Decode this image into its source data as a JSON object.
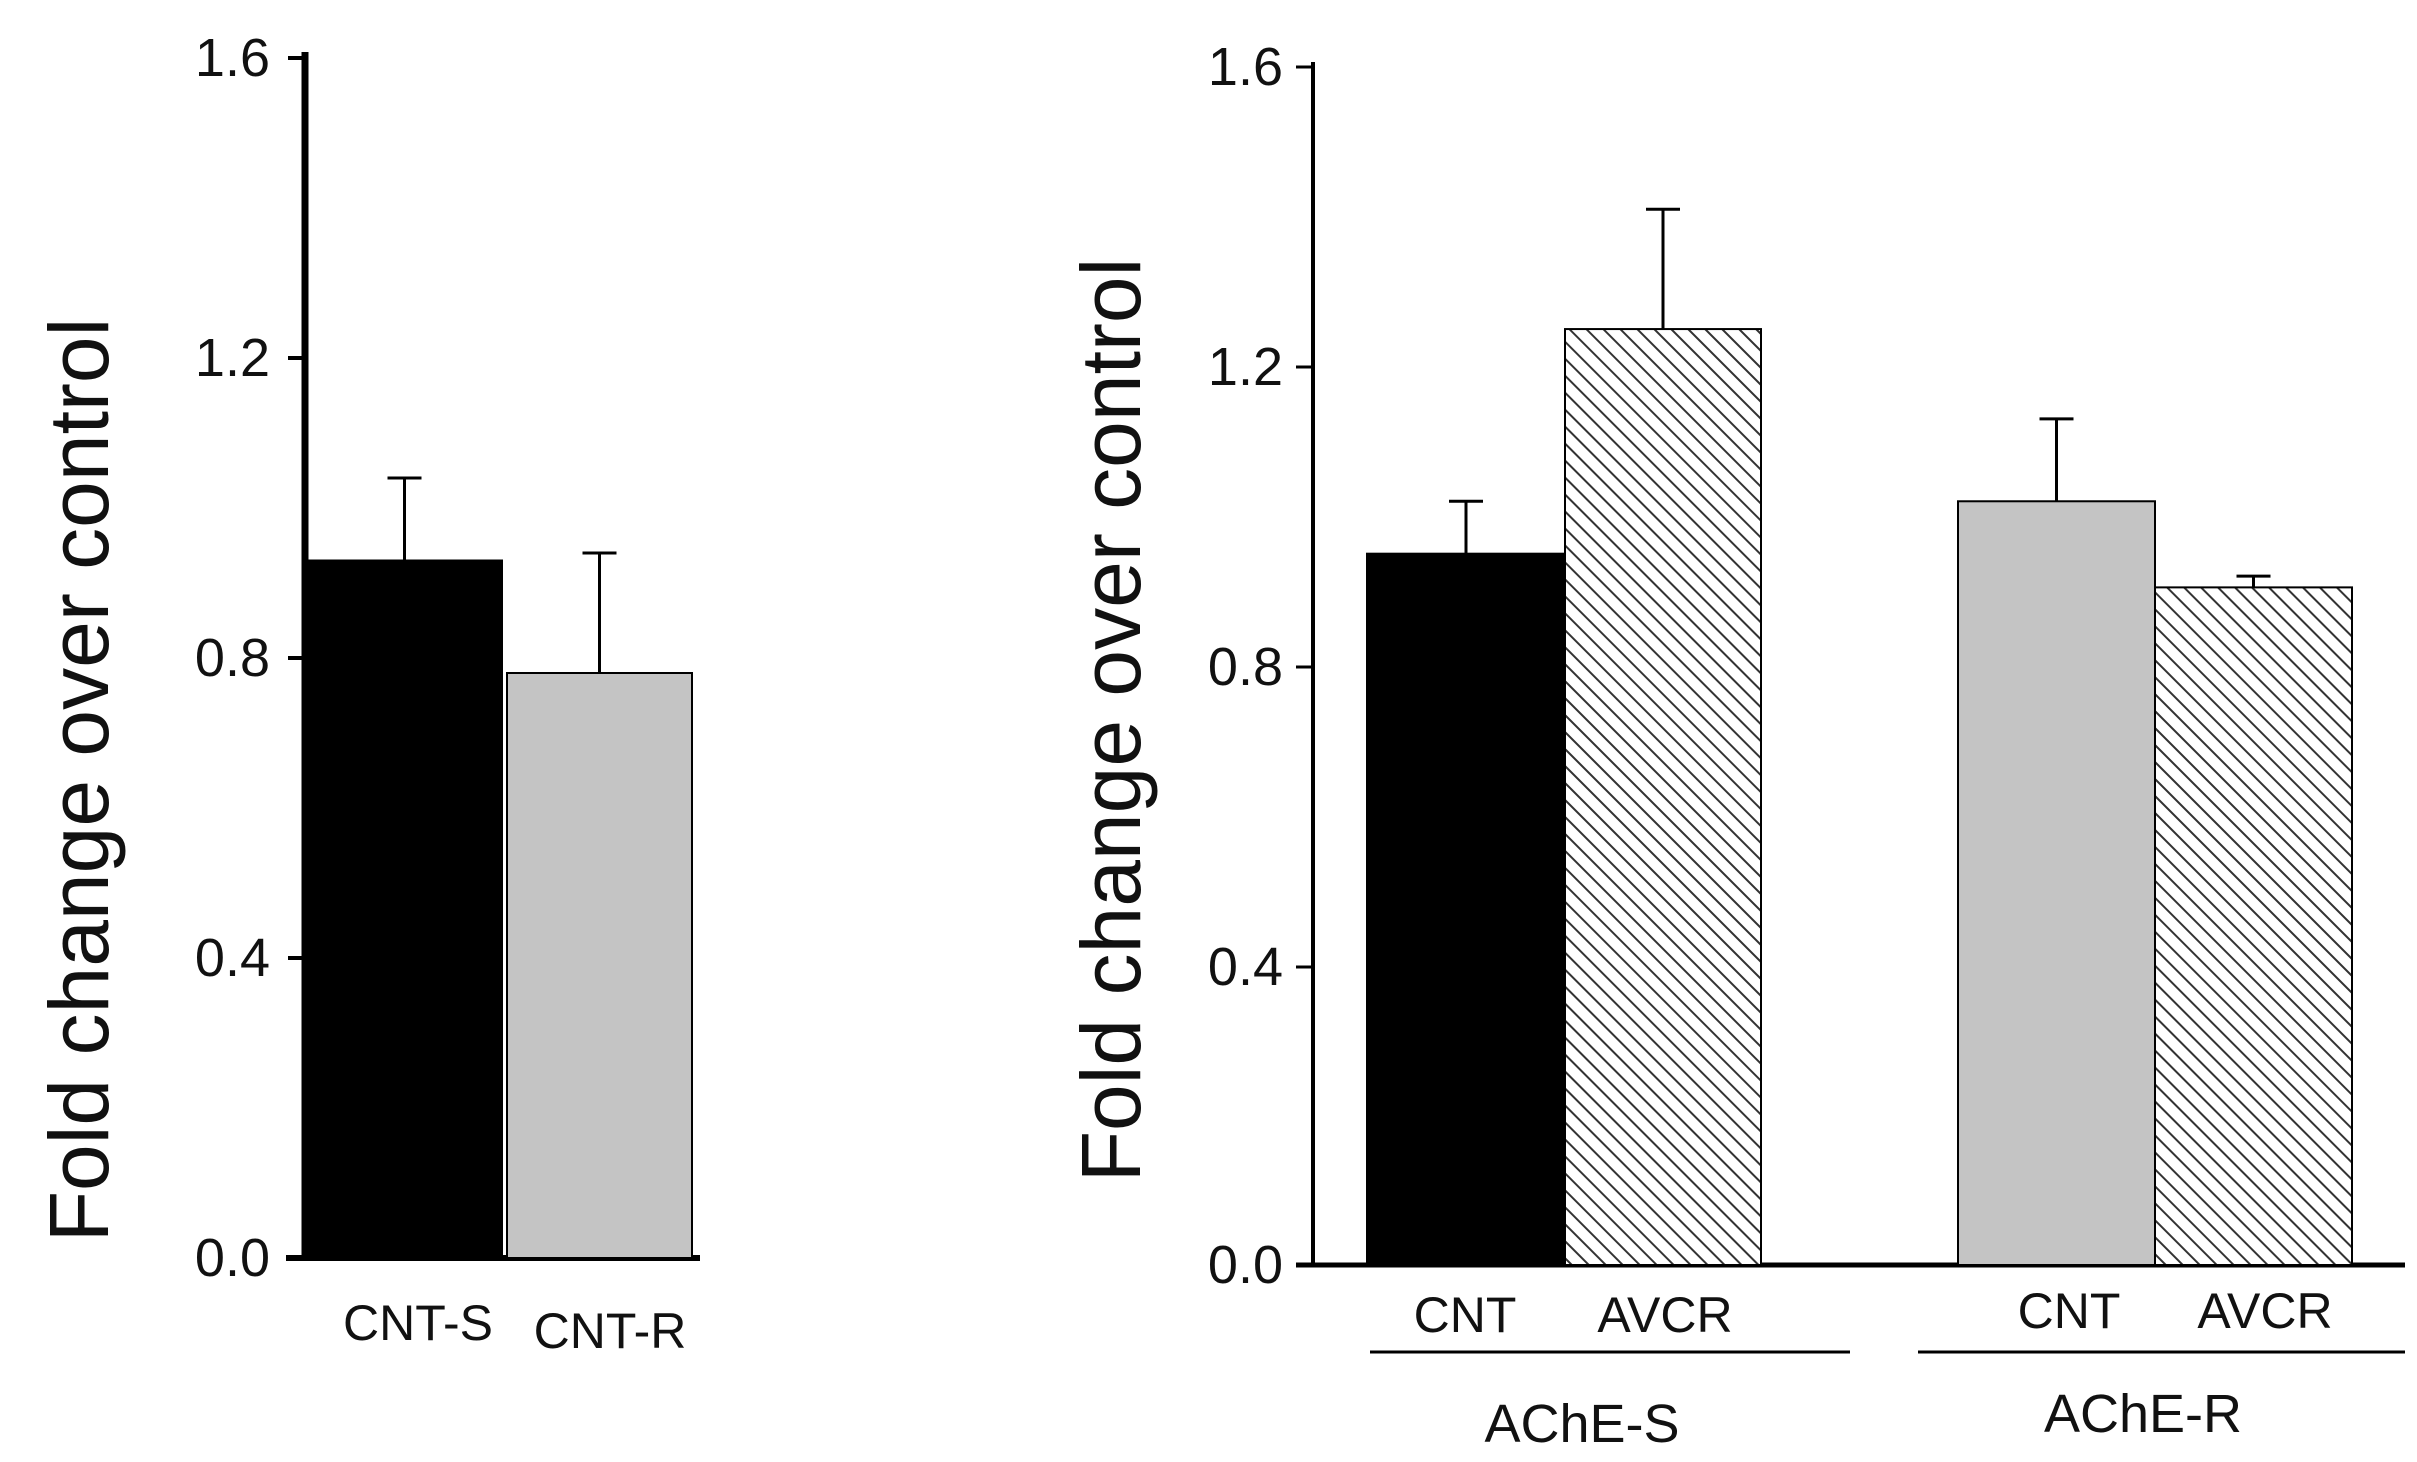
{
  "colors": {
    "black_bar": "#000000",
    "gray_bar": "#c4c4c4",
    "hatch_bg": "#ffffff",
    "hatch_line": "#333333",
    "axis": "#000000"
  },
  "chart_data": [
    {
      "type": "bar",
      "panel": "left",
      "ylabel": "Fold change over control",
      "ylim": [
        0.0,
        1.6
      ],
      "yticks": [
        "0.0",
        "0.4",
        "0.8",
        "1.2",
        "1.6"
      ],
      "categories": [
        "CNT-S",
        "CNT-R"
      ],
      "values": [
        0.93,
        0.78
      ],
      "errors": [
        0.11,
        0.16
      ],
      "fills": [
        "black",
        "gray"
      ]
    },
    {
      "type": "bar",
      "panel": "right",
      "ylabel": "Fold change over control",
      "ylim": [
        0.0,
        1.6
      ],
      "yticks": [
        "0.0",
        "0.4",
        "0.8",
        "1.2",
        "1.6"
      ],
      "groups": [
        {
          "label": "AChE-S",
          "categories": [
            "CNT",
            "AVCR"
          ],
          "values": [
            0.95,
            1.25
          ],
          "errors": [
            0.07,
            0.16
          ],
          "fills": [
            "black",
            "hatch"
          ]
        },
        {
          "label": "AChE-R",
          "categories": [
            "CNT",
            "AVCR"
          ],
          "values": [
            1.02,
            0.905
          ],
          "errors": [
            0.11,
            0.015
          ],
          "fills": [
            "gray",
            "hatch"
          ]
        }
      ]
    }
  ]
}
